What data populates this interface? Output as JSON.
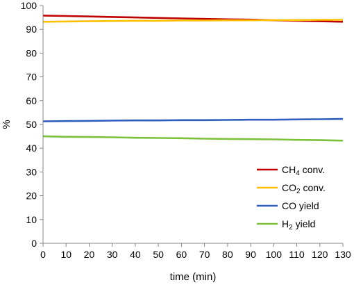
{
  "chart_data": {
    "type": "line",
    "title": "",
    "xlabel": "time (min)",
    "ylabel": "%",
    "xlim": [
      0,
      130
    ],
    "ylim": [
      0,
      100
    ],
    "x_ticks": [
      0,
      10,
      20,
      30,
      40,
      50,
      60,
      70,
      80,
      90,
      100,
      110,
      120,
      130
    ],
    "y_ticks": [
      0,
      10,
      20,
      30,
      40,
      50,
      60,
      70,
      80,
      90,
      100
    ],
    "grid": false,
    "legend_position": "bottom-right",
    "x": [
      0,
      10,
      20,
      30,
      40,
      50,
      60,
      70,
      80,
      90,
      100,
      110,
      120,
      130
    ],
    "series": [
      {
        "name": "CH4 conv.",
        "name_base": "CH",
        "name_sub": "4",
        "name_rest": " conv.",
        "color": "#C00000",
        "values": [
          95.8,
          95.6,
          95.4,
          95.2,
          95.0,
          94.8,
          94.6,
          94.4,
          94.2,
          94.1,
          93.8,
          93.6,
          93.4,
          93.2
        ]
      },
      {
        "name": "CO2 conv.",
        "name_base": "CO",
        "name_sub": "2",
        "name_rest": " conv.",
        "color": "#FFC000",
        "values": [
          93.2,
          93.3,
          93.4,
          93.5,
          93.6,
          93.6,
          93.7,
          93.7,
          93.8,
          93.8,
          93.9,
          93.9,
          94.0,
          94.0
        ]
      },
      {
        "name": "CO yield",
        "name_base": "CO yield",
        "name_sub": "",
        "name_rest": "",
        "color": "#2E5EBD",
        "values": [
          51.3,
          51.4,
          51.5,
          51.6,
          51.7,
          51.7,
          51.8,
          51.8,
          51.9,
          52.0,
          52.0,
          52.1,
          52.2,
          52.3
        ]
      },
      {
        "name": "H2 yield",
        "name_base": "H",
        "name_sub": "2",
        "name_rest": " yield",
        "color": "#7DC03A",
        "values": [
          45.0,
          44.8,
          44.7,
          44.6,
          44.4,
          44.3,
          44.2,
          44.0,
          43.9,
          43.8,
          43.7,
          43.5,
          43.4,
          43.2
        ]
      }
    ]
  }
}
